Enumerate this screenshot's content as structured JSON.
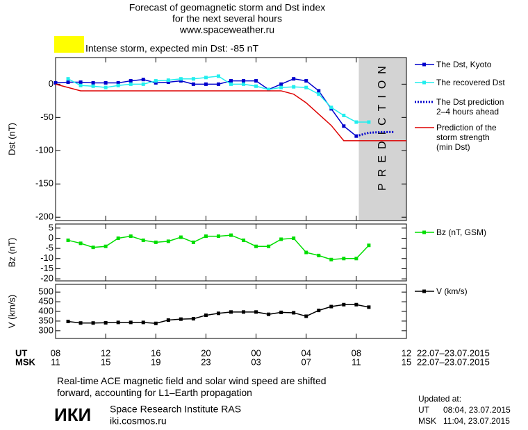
{
  "header": {
    "title": [
      "Forecast of geomagnetic storm and Dst index",
      "for the next several hours",
      "www.spaceweather.ru"
    ]
  },
  "storm": {
    "label": "Intense storm, expected min Dst: -85 nT",
    "color": "#ffff00"
  },
  "chart_data": [
    {
      "type": "line",
      "ylabel": "Dst (nT)",
      "ylim": [
        -205,
        40
      ],
      "yticks": [
        0,
        -50,
        -100,
        -150,
        -200
      ],
      "xlim": [
        0,
        28
      ],
      "shade": {
        "label": "PREDICTION",
        "xlim": [
          24.2,
          28
        ],
        "color": "#d3d3d3"
      },
      "series": [
        {
          "name": "The Dst, Kyoto",
          "color": "#0000cc",
          "marker": true,
          "x": [
            0,
            1,
            2,
            3,
            4,
            5,
            6,
            7,
            8,
            9,
            10,
            11,
            12,
            13,
            14,
            15,
            16,
            17,
            18,
            19,
            20,
            21,
            22,
            23,
            24
          ],
          "values": [
            2,
            3,
            3,
            2,
            2,
            2,
            5,
            7,
            2,
            3,
            5,
            0,
            0,
            0,
            5,
            5,
            5,
            -8,
            0,
            8,
            5,
            -10,
            -37,
            -63,
            -78
          ]
        },
        {
          "name": "The recovered Dst",
          "color": "#22eeee",
          "marker": true,
          "x": [
            1,
            2,
            3,
            4,
            5,
            6,
            7,
            8,
            9,
            10,
            11,
            12,
            13,
            14,
            15,
            16,
            17,
            18,
            19,
            20,
            21,
            22,
            23,
            24,
            25
          ],
          "values": [
            8,
            -2,
            -3,
            -5,
            -2,
            0,
            0,
            5,
            6,
            8,
            8,
            10,
            12,
            0,
            0,
            -3,
            -8,
            -5,
            -4,
            -5,
            -15,
            -35,
            -47,
            -57,
            -57
          ]
        },
        {
          "name": "The Dst prediction\n2–4 hours ahead",
          "color": "#0000cc",
          "dotted": true,
          "x": [
            24,
            25,
            26,
            27
          ],
          "values": [
            -78,
            -73,
            -72,
            -72
          ]
        },
        {
          "name": "Prediction of the\nstorm strength\n(min Dst)",
          "color": "#dd0000",
          "x": [
            0,
            2,
            18,
            19,
            20,
            21,
            22,
            23,
            28
          ],
          "values": [
            0,
            -10,
            -10,
            -15,
            -28,
            -45,
            -62,
            -85,
            -85
          ]
        }
      ]
    },
    {
      "type": "line",
      "ylabel": "Bz (nT)",
      "ylim": [
        -21,
        7
      ],
      "yticks": [
        5,
        0,
        -5,
        -10,
        -15,
        -20
      ],
      "xlim": [
        0,
        28
      ],
      "series": [
        {
          "name": "Bz (nT, GSM)",
          "color": "#00dd00",
          "marker": true,
          "x": [
            1,
            2,
            3,
            4,
            5,
            6,
            7,
            8,
            9,
            10,
            11,
            12,
            13,
            14,
            15,
            16,
            17,
            18,
            19,
            20,
            21,
            22,
            23,
            24,
            25
          ],
          "values": [
            -1,
            -2.5,
            -4.5,
            -4,
            0,
            1,
            -1,
            -2,
            -1.5,
            0.5,
            -2,
            1,
            1,
            1.5,
            -1,
            -4,
            -4,
            -0.5,
            0,
            -7,
            -8.5,
            -10.5,
            -10,
            -10,
            -3.5
          ]
        }
      ]
    },
    {
      "type": "line",
      "ylabel": "V (km/s)",
      "ylim": [
        260,
        540
      ],
      "yticks": [
        500,
        450,
        400,
        350,
        300
      ],
      "xlim": [
        0,
        28
      ],
      "xticks": [
        {
          "value": 0,
          "label": "08"
        },
        {
          "value": 4,
          "label": "12"
        },
        {
          "value": 8,
          "label": "16"
        },
        {
          "value": 12,
          "label": "20"
        },
        {
          "value": 16,
          "label": "00"
        },
        {
          "value": 20,
          "label": "04"
        },
        {
          "value": 24,
          "label": "08"
        },
        {
          "value": 28,
          "label": "12"
        }
      ],
      "xticks_msk": [
        "11",
        "15",
        "19",
        "23",
        "03",
        "07",
        "11",
        "15"
      ],
      "xrows": [
        "UT",
        "MSK"
      ],
      "dates": "22.07–23.07.2015",
      "series": [
        {
          "name": "V (km/s)",
          "color": "#000000",
          "marker": true,
          "x": [
            1,
            2,
            3,
            4,
            5,
            6,
            7,
            8,
            9,
            10,
            11,
            12,
            13,
            14,
            15,
            16,
            17,
            18,
            19,
            20,
            21,
            22,
            23,
            24,
            25
          ],
          "values": [
            348,
            340,
            340,
            341,
            343,
            343,
            343,
            338,
            355,
            360,
            362,
            380,
            390,
            397,
            397,
            397,
            385,
            395,
            393,
            375,
            405,
            425,
            435,
            435,
            422
          ]
        }
      ]
    }
  ],
  "footer": {
    "note": "Real-time ACE magnetic field and solar wind speed are shifted\nforward, accounting for L1–Earth propagation",
    "logo": "ИКИ",
    "institute": "Space Research Institute RAS",
    "site": "iki.cosmos.ru",
    "updated": {
      "label": "Updated at:",
      "rows": [
        [
          "UT",
          "08:04, 23.07.2015"
        ],
        [
          "MSK",
          "11:04, 23.07.2015"
        ]
      ]
    }
  }
}
